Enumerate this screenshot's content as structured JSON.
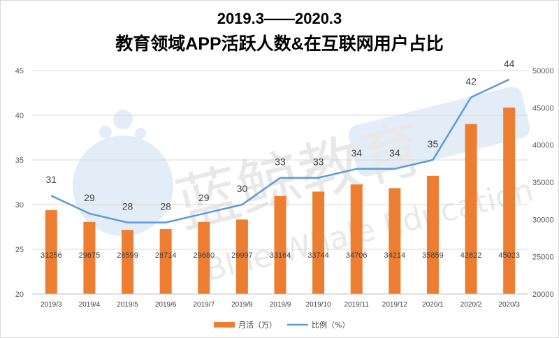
{
  "chart_data": {
    "type": "bar+line",
    "title_line1": "2019.3——2020.3",
    "title_line2": "教育领域APP活跃人数&在互联网用户占比",
    "categories": [
      "2019/3",
      "2019/4",
      "2019/5",
      "2019/6",
      "2019/7",
      "2019/8",
      "2019/9",
      "2019/10",
      "2019/11",
      "2019/12",
      "2020/1",
      "2020/2",
      "2020/3"
    ],
    "series": [
      {
        "name": "月活（万）",
        "type": "bar",
        "axis": "right",
        "color": "#ed7d31",
        "values": [
          31256,
          29675,
          28599,
          28714,
          29680,
          29997,
          33164,
          33744,
          34706,
          34214,
          35859,
          42822,
          45023
        ]
      },
      {
        "name": "比例（%）",
        "type": "line",
        "axis": "left",
        "color": "#5b9bd5",
        "values": [
          31,
          29,
          28,
          28,
          29,
          30,
          33,
          33,
          34,
          34,
          35,
          42,
          44
        ]
      }
    ],
    "y_left": {
      "min": 20,
      "max": 45,
      "ticks": [
        "20",
        "25",
        "30",
        "35",
        "40",
        "45"
      ]
    },
    "y_right": {
      "min": 20000,
      "max": 50000,
      "ticks": [
        "20000",
        "25000",
        "30000",
        "35000",
        "40000",
        "45000",
        "50000"
      ]
    },
    "grid": true,
    "legend_position": "bottom",
    "watermark": {
      "text": "蓝鲸教育",
      "subtext": "Blue Whale Education"
    }
  }
}
